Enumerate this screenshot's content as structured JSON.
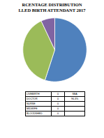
{
  "chart_data": {
    "type": "pie",
    "title": "RCENTAGE DISTRIBUTION\nLLED BIRTH ATTENDANT 2017",
    "categories": [
      null,
      null,
      null
    ],
    "values": [
      55,
      38,
      7
    ],
    "colors": [
      "#4f81bd",
      "#9bbb59",
      "#8064a2"
    ]
  },
  "table": {
    "rows": [
      [
        "LIVEBIRTH",
        "0",
        "SBA"
      ],
      [
        "DOCTOR",
        "0",
        "96.3%"
      ],
      [
        "NURSE",
        "0",
        null
      ],
      [
        "MIDWIFE",
        "0",
        null
      ],
      [
        "BLOODSHED",
        "0",
        null
      ]
    ]
  }
}
